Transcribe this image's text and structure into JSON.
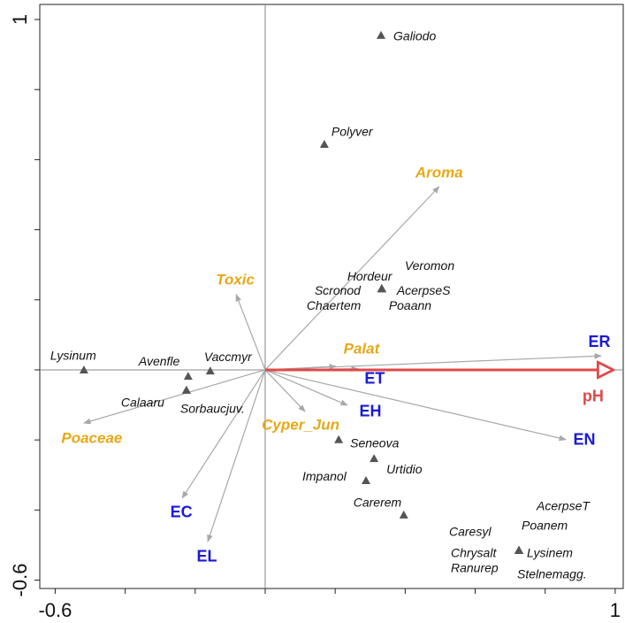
{
  "chart_data": {
    "type": "biplot",
    "xlim": [
      -0.644,
      1.023
    ],
    "ylim": [
      -0.624,
      1.043
    ],
    "xticks": [
      -0.6,
      1.0
    ],
    "yticks": [
      -0.6,
      1.0
    ],
    "xminorticks": [
      -0.4,
      -0.2,
      0,
      0.2,
      0.4,
      0.6,
      0.8
    ],
    "yminorticks": [
      -0.4,
      -0.2,
      0,
      0.2,
      0.4,
      0.6,
      0.8
    ],
    "point_color": "#555555",
    "points": [
      {
        "label": "Galiodo",
        "x": 0.331,
        "y": 0.955
      },
      {
        "label": "Polyver",
        "x": 0.169,
        "y": 0.644
      },
      {
        "label": "Hordeur",
        "x": 0.333,
        "y": 0.232
      },
      {
        "label": "Veromon",
        "x": 0.333,
        "y": 0.232
      },
      {
        "label": "Scronod",
        "x": 0.333,
        "y": 0.232
      },
      {
        "label": "AcerpseS",
        "x": 0.333,
        "y": 0.232
      },
      {
        "label": "Chaertem",
        "x": 0.333,
        "y": 0.232
      },
      {
        "label": "Poaann",
        "x": 0.333,
        "y": 0.232
      },
      {
        "label": "Lysinum",
        "x": -0.518,
        "y": 0.0
      },
      {
        "label": "Avenfle",
        "x": -0.22,
        "y": -0.018
      },
      {
        "label": "Vaccmyr",
        "x": -0.157,
        "y": -0.003
      },
      {
        "label": "Calaaru",
        "x": -0.225,
        "y": -0.058
      },
      {
        "label": "Sorbaucjuv.",
        "x": -0.225,
        "y": -0.058
      },
      {
        "label": "Seneova",
        "x": 0.21,
        "y": -0.199
      },
      {
        "label": "Urtidio",
        "x": 0.311,
        "y": -0.253
      },
      {
        "label": "Impanol",
        "x": 0.288,
        "y": -0.316
      },
      {
        "label": "Carerem",
        "x": 0.396,
        "y": -0.414
      },
      {
        "label": "AcerpseT",
        "x": 0.725,
        "y": -0.515
      },
      {
        "label": "Poanem",
        "x": 0.725,
        "y": -0.515
      },
      {
        "label": "Caresyl",
        "x": 0.725,
        "y": -0.515
      },
      {
        "label": "Chrysalt",
        "x": 0.725,
        "y": -0.515
      },
      {
        "label": "Lysinem",
        "x": 0.725,
        "y": -0.515
      },
      {
        "label": "Ranurep",
        "x": 0.725,
        "y": -0.515
      },
      {
        "label": "Stelnemagg.",
        "x": 0.725,
        "y": -0.515
      }
    ],
    "trait_color": "#e6a817",
    "traits": [
      {
        "label": "Aroma",
        "x": 0.497,
        "y": 0.523
      },
      {
        "label": "Toxic",
        "x": -0.083,
        "y": 0.215
      },
      {
        "label": "Palat",
        "x": 0.202,
        "y": 0.01
      },
      {
        "label": "Cyper_Jun",
        "x": 0.114,
        "y": -0.119
      },
      {
        "label": "Poaceae",
        "x": -0.518,
        "y": -0.152
      }
    ],
    "variable_color": "#1a1ad6",
    "variables": [
      {
        "label": "ER",
        "x": 0.96,
        "y": 0.04
      },
      {
        "label": "ET",
        "x": 0.265,
        "y": 0.003
      },
      {
        "label": "EH",
        "x": 0.235,
        "y": -0.101
      },
      {
        "label": "EN",
        "x": 0.859,
        "y": -0.199
      },
      {
        "label": "EC",
        "x": -0.237,
        "y": -0.366
      },
      {
        "label": "EL",
        "x": -0.164,
        "y": -0.49
      }
    ],
    "response": {
      "label": "pH",
      "x": 1.005,
      "y": 0,
      "color": "#e04848"
    }
  }
}
